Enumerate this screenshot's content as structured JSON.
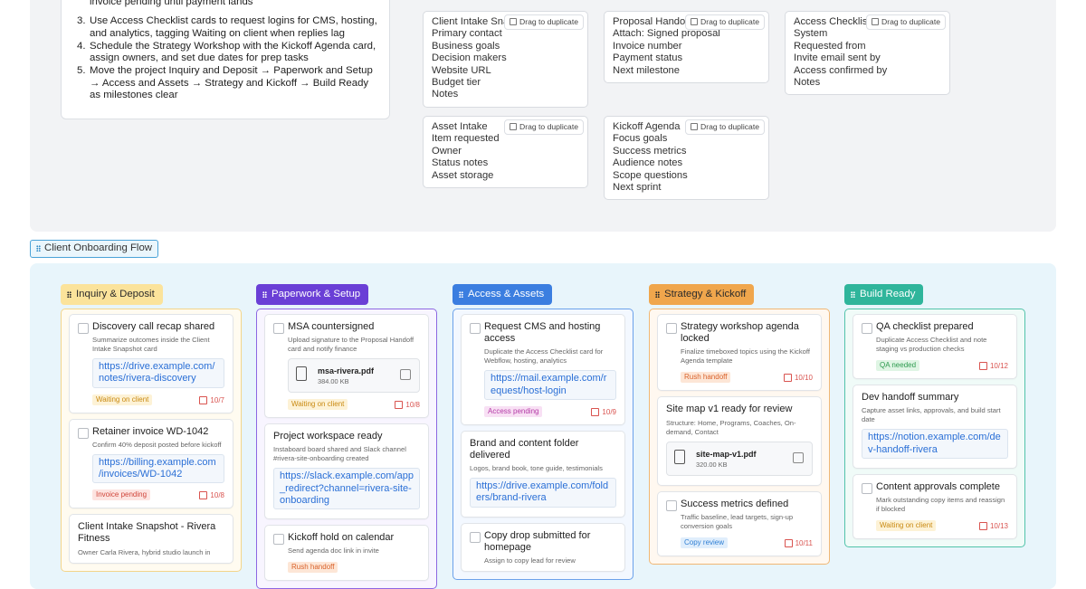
{
  "instructions": {
    "partial": "invoice pending until payment lands",
    "steps": [
      {
        "number": "3.",
        "text": "Use Access Checklist cards to request logins for CMS, hosting, and analytics, tagging Waiting on client when replies lag"
      },
      {
        "number": "4.",
        "text": "Schedule the Strategy Workshop with the Kickoff Agenda card, assign owners, and set due dates for prep tasks"
      },
      {
        "number": "5.",
        "text": "Move the project Inquiry and Deposit → Paperwork and Setup → Access and Assets → Strategy and Kickoff → Build Ready as milestones clear"
      }
    ]
  },
  "templates": {
    "badge": "Drag to duplicate",
    "cards": [
      {
        "title": "Client Intake Snapshot",
        "fields": [
          "Primary contact",
          "Business goals",
          "Decision makers",
          "Website URL",
          "Budget tier",
          "Notes"
        ]
      },
      {
        "title": "Proposal Handoff",
        "fields": [
          "Attach: Signed proposal",
          "Invoice number",
          "Payment status",
          "Next milestone"
        ]
      },
      {
        "title": "Access Checklist",
        "fields": [
          "System",
          "Requested from",
          "Invite email sent by",
          "Access confirmed by",
          "Notes"
        ]
      },
      {
        "title": "Asset Intake",
        "fields": [
          "Item requested",
          "Owner",
          "Status notes",
          "Asset storage"
        ]
      },
      {
        "title": "Kickoff Agenda",
        "fields": [
          "Focus goals",
          "Success metrics",
          "Audience notes",
          "Scope questions",
          "Next sprint"
        ]
      }
    ]
  },
  "board": {
    "title": "Client Onboarding Flow",
    "columns": [
      {
        "name": "Inquiry & Deposit",
        "header_color": "#fbe39b",
        "header_text": "#2b2b2b",
        "border": "#f3d58a",
        "tint": "#fffbf0",
        "cards": [
          {
            "checkbox": true,
            "title": "Discovery call recap shared",
            "desc": "Summarize outcomes inside the Client Intake Snapshot card",
            "link": "https://drive.example.com/notes/rivera-discovery",
            "tag": {
              "label": "Waiting on client",
              "color": "#c98a12",
              "bg": "#fdf2d6"
            },
            "date": "10/7"
          },
          {
            "checkbox": true,
            "title": "Retainer invoice WD-1042",
            "desc": "Confirm 40% deposit posted before kickoff",
            "link": "https://billing.example.com/invoices/WD-1042",
            "tag": {
              "label": "Invoice pending",
              "color": "#d0453a",
              "bg": "#fde4e1"
            },
            "date": "10/8"
          },
          {
            "checkbox": false,
            "title": "Client Intake Snapshot - Rivera Fitness",
            "desc": "Owner Carla Rivera, hybrid studio launch in"
          }
        ]
      },
      {
        "name": "Paperwork & Setup",
        "header_color": "#6a3fd6",
        "header_text": "#ffffff",
        "border": "#8d67e2",
        "tint": "#f8f5ff",
        "cards": [
          {
            "checkbox": true,
            "title": "MSA countersigned",
            "desc": "Upload signature to the Proposal Handoff card and notify finance",
            "file": {
              "name": "msa-rivera.pdf",
              "size": "384.00 KB"
            },
            "tag": {
              "label": "Waiting on client",
              "color": "#c98a12",
              "bg": "#fdf2d6"
            },
            "date": "10/8"
          },
          {
            "checkbox": false,
            "title": "Project workspace ready",
            "desc": "Instaboard board shared and Slack channel #rivera-site-onboarding created",
            "link": "https://slack.example.com/app_redirect?channel=rivera-site-onboarding"
          },
          {
            "checkbox": true,
            "title": "Kickoff hold on calendar",
            "desc": "Send agenda doc link in invite",
            "tag": {
              "label": "Rush handoff",
              "color": "#d9622b",
              "bg": "#fde6d6"
            }
          }
        ]
      },
      {
        "name": "Access & Assets",
        "header_color": "#3b7ee0",
        "header_text": "#ffffff",
        "border": "#6ba1ea",
        "tint": "#f3f8ff",
        "cards": [
          {
            "checkbox": true,
            "title": "Request CMS and hosting access",
            "desc": "Duplicate the Access Checklist card for Webflow, hosting, analytics",
            "link": "https://mail.example.com/request/host-login",
            "tag": {
              "label": "Access pending",
              "color": "#b33aa6",
              "bg": "#f8e0f4"
            },
            "date": "10/9"
          },
          {
            "checkbox": false,
            "title": "Brand and content folder delivered",
            "desc": "Logos, brand book, tone guide, testimonials",
            "link": "https://drive.example.com/folders/brand-rivera"
          },
          {
            "checkbox": true,
            "title": "Copy drop submitted for homepage",
            "desc": "Assign to copy lead for review"
          }
        ]
      },
      {
        "name": "Strategy & Kickoff",
        "header_color": "#f0a64c",
        "header_text": "#2b2b2b",
        "border": "#f0b774",
        "tint": "#fff8f0",
        "cards": [
          {
            "checkbox": true,
            "title": "Strategy workshop agenda locked",
            "desc": "Finalize timeboxed topics using the Kickoff Agenda template",
            "tag": {
              "label": "Rush handoff",
              "color": "#d9622b",
              "bg": "#fde6d6"
            },
            "date": "10/10"
          },
          {
            "checkbox": false,
            "title": "Site map v1 ready for review",
            "desc": "Structure: Home, Programs, Coaches, On-demand, Contact",
            "file": {
              "name": "site-map-v1.pdf",
              "size": "320.00 KB"
            }
          },
          {
            "checkbox": true,
            "title": "Success metrics defined",
            "desc": "Traffic baseline, lead targets, sign-up conversion goals",
            "tag": {
              "label": "Copy review",
              "color": "#2f7fd4",
              "bg": "#e0eefc"
            },
            "date": "10/11"
          }
        ]
      },
      {
        "name": "Build Ready",
        "header_color": "#2fb59b",
        "header_text": "#ffffff",
        "border": "#52c3aa",
        "tint": "#f0fbf8",
        "cards": [
          {
            "checkbox": true,
            "title": "QA checklist prepared",
            "desc": "Duplicate Access Checklist and note staging vs production checks",
            "tag": {
              "label": "QA needed",
              "color": "#2c9a4e",
              "bg": "#dff5e4"
            },
            "date": "10/12"
          },
          {
            "checkbox": false,
            "title": "Dev handoff summary",
            "desc": "Capture asset links, approvals, and build start date",
            "link": "https://notion.example.com/dev-handoff-rivera"
          },
          {
            "checkbox": true,
            "title": "Content approvals complete",
            "desc": "Mark outstanding copy items and reassign if blocked",
            "tag": {
              "label": "Waiting on client",
              "color": "#c98a12",
              "bg": "#fdf2d6"
            },
            "date": "10/13"
          }
        ]
      }
    ]
  }
}
